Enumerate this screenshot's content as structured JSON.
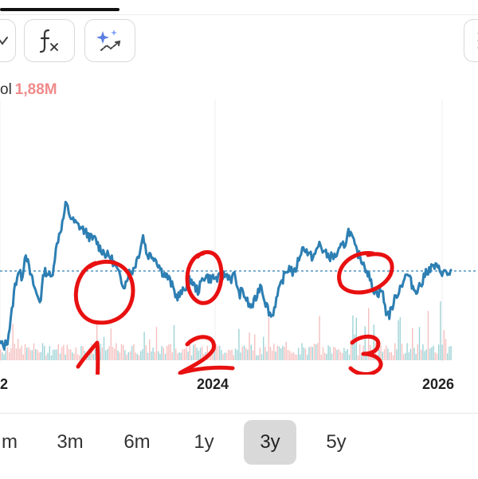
{
  "header": {
    "loading_progress": 0.25
  },
  "toolbar": {
    "buttons": [
      {
        "icon": "chevron-down-icon"
      },
      {
        "icon": "function-fx-icon"
      },
      {
        "icon": "ai-sparkle-icon"
      },
      {
        "icon": "more-vertical-icon"
      }
    ]
  },
  "volume": {
    "label": "ol",
    "value": "1,88M",
    "value_color": "#f08a8a"
  },
  "chart_data": {
    "type": "line",
    "line_color": "#2d7fb3",
    "reference_line_color": "#2d7fb3",
    "reference_value": 300,
    "x_labels": [
      "2",
      "2024",
      "2026"
    ],
    "y_range": [
      460,
      180
    ],
    "series": [
      {
        "values": [
          210,
          205,
          212,
          240,
          280,
          300,
          292,
          325,
          300,
          285,
          270,
          262,
          300,
          298,
          290,
          320,
          345,
          360,
          385,
          370,
          362,
          358,
          355,
          350,
          345,
          340,
          340,
          330,
          325,
          320,
          318,
          310,
          300,
          288,
          282,
          298,
          300,
          310,
          325,
          345,
          320,
          320,
          318,
          310,
          300,
          295,
          290,
          280,
          268,
          270,
          275,
          285,
          290,
          280,
          275,
          288,
          295,
          290,
          292,
          290,
          292,
          295,
          295,
          290,
          296,
          270,
          275,
          265,
          255,
          258,
          270,
          285,
          265,
          252,
          242,
          260,
          275,
          290,
          300,
          305,
          295,
          310,
          325,
          330,
          320,
          318,
          322,
          335,
          325,
          320,
          318,
          318,
          322,
          330,
          335,
          352,
          340,
          325,
          318,
          310,
          300,
          285,
          275,
          272,
          277,
          250,
          245,
          258,
          270,
          280,
          290,
          296,
          285,
          275,
          280,
          285,
          300,
          302,
          306,
          304,
          300,
          298,
          296,
          300
        ]
      }
    ],
    "volume_bars": {
      "up_color": "#7ec4c8",
      "down_color": "#f1a9a9"
    }
  },
  "annotations": {
    "color": "#e81010",
    "numbers": [
      "1",
      "2",
      "3"
    ]
  },
  "range_selector": {
    "options": [
      "m",
      "3m",
      "6m",
      "1y",
      "3y",
      "5y"
    ],
    "selected": "3y"
  }
}
